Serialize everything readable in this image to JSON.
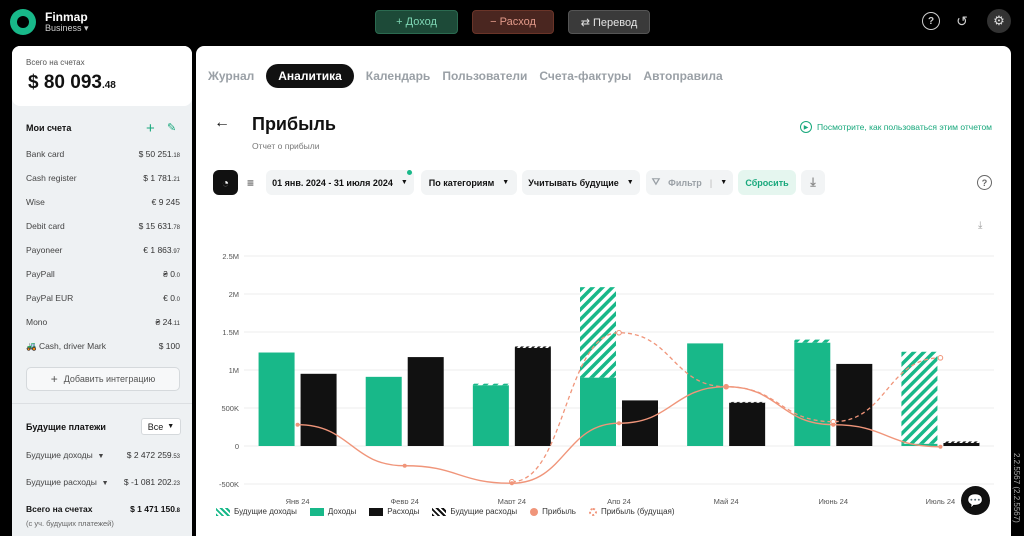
{
  "app": {
    "name": "Finmap",
    "plan": "Business"
  },
  "topbar": {
    "income_label": "+ Доход",
    "expense_label": "− Расход",
    "transfer_label": "⇄ Перевод"
  },
  "sidebar": {
    "balance_label": "Всего на счетах",
    "balance_main": "$ 80 093",
    "balance_cents": ".48",
    "accounts_title": "Мои счета",
    "accounts": [
      {
        "name": "Bank card",
        "value": "$ 50 251",
        "cents": ".18"
      },
      {
        "name": "Cash register",
        "value": "$ 1 781",
        "cents": ".21"
      },
      {
        "name": "Wise",
        "value": "€ 9 245",
        "cents": ""
      },
      {
        "name": "Debit card",
        "value": "$ 15 631",
        "cents": ".78"
      },
      {
        "name": "Payoneer",
        "value": "€ 1 863",
        "cents": ".97"
      },
      {
        "name": "PayPall",
        "value": "₴ 0",
        "cents": ".0"
      },
      {
        "name": "PayPal EUR",
        "value": "€ 0",
        "cents": ".0"
      },
      {
        "name": "Mono",
        "value": "₴ 24",
        "cents": ".11"
      },
      {
        "name": "🚜 Cash, driver Mark",
        "value": "$ 100",
        "cents": ""
      }
    ],
    "add_integration_label": "Добавить интеграцию",
    "future_title": "Будущие платежи",
    "future_filter": "Все",
    "future_income_label": "Будущие доходы",
    "future_income_value": "$ 2 472 259",
    "future_income_cents": ".53",
    "future_expense_label": "Будущие расходы",
    "future_expense_value": "$ -1 081 202",
    "future_expense_cents": ".23",
    "total_label": "Всего на счетах",
    "total_sub": "(с уч. будущих платежей)",
    "total_value": "$ 1 471 150",
    "total_cents": ".8"
  },
  "tabs": [
    "Журнал",
    "Аналитика",
    "Календарь",
    "Пользователи",
    "Счета-фактуры",
    "Автоправила"
  ],
  "active_tab": 1,
  "report": {
    "title": "Прибыль",
    "subtitle": "Отчет о прибыли",
    "howto_label": "Посмотрите, как пользоваться этим отчетом"
  },
  "filters": {
    "date_range": "01 янв. 2024 - 31 июля 2024",
    "grouping": "По категориям",
    "future": "Учитывать будущие",
    "filter_label": "Фильтр",
    "reset_label": "Сбросить"
  },
  "chart_data": {
    "type": "bar",
    "categories": [
      "Янв 24",
      "Февр 24",
      "Март 24",
      "Апр 24",
      "Май 24",
      "Июнь 24",
      "Июль 24"
    ],
    "y_ticks": [
      "-500K",
      "0",
      "500K",
      "1M",
      "1.5M",
      "2M",
      "2.5M"
    ],
    "ylim": [
      -500000,
      2500000
    ],
    "series": [
      {
        "name": "Будущие доходы",
        "values": [
          0,
          0,
          20000,
          1190000,
          0,
          40000,
          1210000
        ]
      },
      {
        "name": "Доходы",
        "values": [
          1230000,
          910000,
          800000,
          900000,
          1350000,
          1360000,
          30000
        ]
      },
      {
        "name": "Расходы",
        "values": [
          950000,
          1170000,
          1290000,
          600000,
          570000,
          1080000,
          40000
        ]
      },
      {
        "name": "Будущие расходы",
        "values": [
          0,
          0,
          20000,
          0,
          10000,
          0,
          20000
        ]
      },
      {
        "name": "Прибыль",
        "values": [
          280000,
          -260000,
          -490000,
          300000,
          780000,
          280000,
          -10000
        ]
      },
      {
        "name": "Прибыль (будущая)",
        "values": [
          null,
          null,
          -470000,
          1490000,
          780000,
          320000,
          1160000
        ]
      }
    ],
    "colors": {
      "income": "#18b889",
      "expense": "#111111",
      "profit": "#f0957a"
    },
    "legend_position": "bottom-left"
  },
  "version_text": "2.2.5567 (2.2.5567)"
}
